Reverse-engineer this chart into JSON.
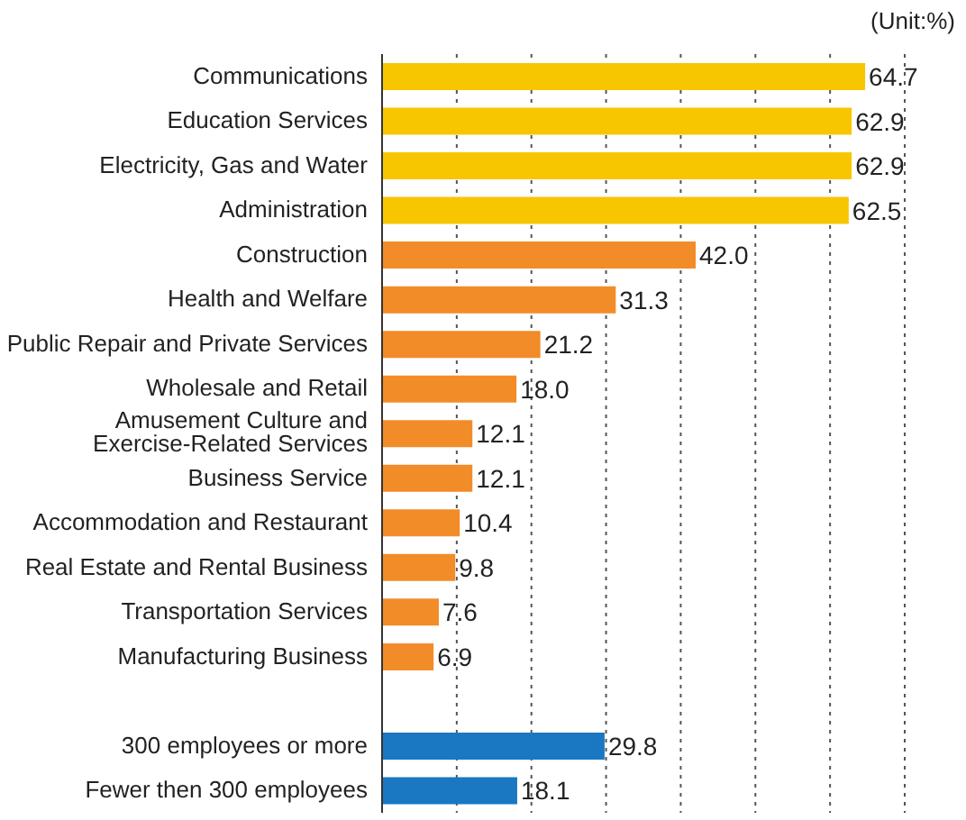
{
  "chart_data": {
    "type": "bar",
    "orientation": "horizontal",
    "categories": [
      "Communications",
      "Education Services",
      "Electricity, Gas and Water",
      "Administration",
      "Construction",
      "Health and Welfare",
      "Public Repair and Private Services",
      "Wholesale and Retail",
      "Amusement Culture and\nExercise-Related Services",
      "Business Service",
      "Accommodation and Restaurant",
      "Real Estate and Rental Business",
      "Transportation Services",
      "Manufacturing Business",
      null,
      "300 employees or more",
      "Fewer then 300 employees"
    ],
    "values": [
      64.7,
      62.9,
      62.9,
      62.5,
      42.0,
      31.3,
      21.2,
      18.0,
      12.1,
      12.1,
      10.4,
      9.8,
      7.6,
      6.9,
      null,
      29.8,
      18.1
    ],
    "value_labels": [
      "64.7",
      "62.9",
      "62.9",
      "62.5",
      "42.0",
      "31.3",
      "21.2",
      "18.0",
      "12.1",
      "12.1",
      "10.4",
      "9.8",
      "7.6",
      "6.9",
      null,
      "29.8",
      "18.1"
    ],
    "colors": [
      "#f7c600",
      "#f7c600",
      "#f7c600",
      "#f7c600",
      "#f28c28",
      "#f28c28",
      "#f28c28",
      "#f28c28",
      "#f28c28",
      "#f28c28",
      "#f28c28",
      "#f28c28",
      "#f28c28",
      "#f28c28",
      "#f28c28",
      "#1a78c2",
      "#1a78c2"
    ],
    "xlim": [
      0,
      70
    ],
    "xticks": [
      {
        "value": 0,
        "label": null
      },
      {
        "value": 10,
        "label": null
      },
      {
        "value": 20,
        "label": null
      },
      {
        "value": 30,
        "label": null
      },
      {
        "value": 40,
        "label": null
      },
      {
        "value": 50,
        "label": null
      },
      {
        "value": 60,
        "label": null
      },
      {
        "value": 70,
        "label": null
      }
    ],
    "tick_labels": "y",
    "grid": "x",
    "legend": false,
    "annotations": [
      "(Unit:%)"
    ]
  }
}
